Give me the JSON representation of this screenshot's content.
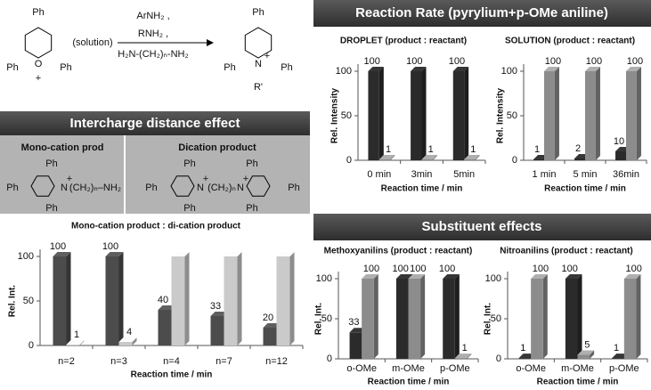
{
  "scheme": {
    "reactant_labels": [
      "Ph",
      "Ph",
      "Ph",
      "O",
      "+"
    ],
    "condition": "(solution)",
    "reagents": [
      "ArNH₂ ,",
      "RNH₂ ,",
      "H₂N-(CH₂)ₙ-NH₂"
    ],
    "product_labels": [
      "Ph",
      "Ph",
      "Ph",
      "N",
      "+",
      "R'"
    ]
  },
  "headers": [
    "Reaction Rate (pyrylium+p-OMe aniline)",
    "Intercharge distance effect",
    "Substituent effects"
  ],
  "structures": {
    "mono": {
      "title": "Mono-cation prod",
      "labels": [
        "Ph",
        "Ph",
        "Ph",
        "N",
        "+",
        "(CH₂)ₙ–NH₂"
      ]
    },
    "di": {
      "title": "Dication product",
      "labels": [
        "Ph",
        "Ph",
        "Ph",
        "N",
        "+",
        "(CH₂)ₙ",
        "N",
        "+",
        "Ph",
        "Ph",
        "Ph"
      ]
    }
  },
  "chart_data": [
    {
      "type": "bar",
      "title": "DROPLET (product : reactant)",
      "categories": [
        "0 min",
        "3min",
        "5min"
      ],
      "series": [
        {
          "color": "#2b2b2b",
          "values": [
            100,
            100,
            100
          ]
        },
        {
          "color": "#8c8c8c",
          "values": [
            1,
            1,
            1
          ]
        }
      ],
      "ylim": [
        0,
        100
      ],
      "yticks": [
        0,
        50,
        100
      ],
      "y_label": "Rel. Intensity",
      "x_label": "Reaction time / min"
    },
    {
      "type": "bar",
      "title": "SOLUTION (product : reactant)",
      "categories": [
        "1 min",
        "5 min",
        "36min"
      ],
      "series": [
        {
          "color": "#2b2b2b",
          "values": [
            1,
            2,
            10
          ]
        },
        {
          "color": "#8c8c8c",
          "values": [
            100,
            100,
            100
          ]
        }
      ],
      "ylim": [
        0,
        100
      ],
      "yticks": [
        0,
        50,
        100
      ],
      "y_label": "Rel. Intensity",
      "x_label": "Reaction time / min"
    },
    {
      "type": "bar",
      "title": "Mono-cation product : di-cation product",
      "categories": [
        "n=2",
        "n=3",
        "n=4",
        "n=7",
        "n=12"
      ],
      "series": [
        {
          "color": "#4c4c4c",
          "values": [
            100,
            100,
            40,
            33,
            20
          ]
        },
        {
          "color": "#cacaca",
          "values": [
            1,
            4,
            100,
            100,
            100
          ],
          "value_labels": [
            "1",
            "4",
            null,
            null,
            null
          ]
        }
      ],
      "ylim": [
        0,
        100
      ],
      "yticks": [
        0,
        50,
        100
      ],
      "y_label": "Rel. Int.",
      "x_label": "Reaction time / min"
    },
    {
      "type": "bar",
      "title": "Methoxyanilins (product : reactant)",
      "categories": [
        "o-OMe",
        "m-OMe",
        "p-OMe"
      ],
      "series": [
        {
          "color": "#2b2b2b",
          "values": [
            33,
            100,
            100
          ]
        },
        {
          "color": "#8c8c8c",
          "values": [
            100,
            100,
            1
          ]
        }
      ],
      "ylim": [
        0,
        100
      ],
      "yticks": [
        0,
        50,
        100
      ],
      "y_label": "Rel. Int.",
      "x_label": "Reaction time / min"
    },
    {
      "type": "bar",
      "title": "Nitroanilins (product : reactant)",
      "categories": [
        "o-OMe",
        "m-OMe",
        "p-OMe"
      ],
      "series": [
        {
          "color": "#2b2b2b",
          "values": [
            1,
            100,
            1
          ]
        },
        {
          "color": "#8c8c8c",
          "values": [
            100,
            5,
            100
          ]
        }
      ],
      "ylim": [
        0,
        100
      ],
      "yticks": [
        0,
        50,
        100
      ],
      "y_label": "Rel. Int.",
      "x_label": "Reaction time / min"
    }
  ]
}
